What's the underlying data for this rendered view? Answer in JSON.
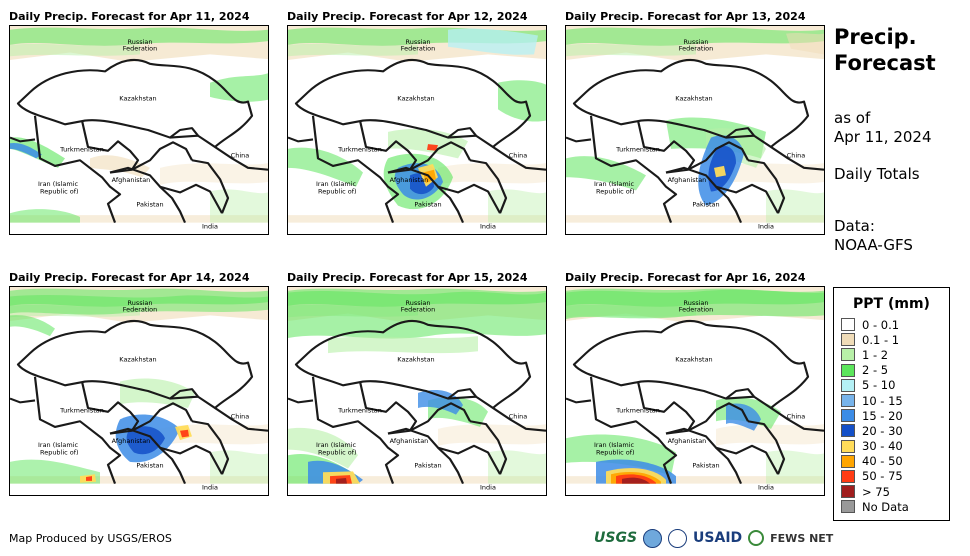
{
  "panels": [
    {
      "title": "Daily Precip. Forecast for Apr 11, 2024",
      "rain": "d1"
    },
    {
      "title": "Daily Precip. Forecast for Apr 12, 2024",
      "rain": "d2"
    },
    {
      "title": "Daily Precip. Forecast for Apr 13, 2024",
      "rain": "d3"
    },
    {
      "title": "Daily Precip. Forecast for Apr 14, 2024",
      "rain": "d4"
    },
    {
      "title": "Daily Precip. Forecast for Apr 15, 2024",
      "rain": "d5"
    },
    {
      "title": "Daily Precip. Forecast for Apr 16, 2024",
      "rain": "d6"
    }
  ],
  "map_labels": {
    "russia_line1": "Russian",
    "russia_line2": "Federation",
    "kazakhstan": "Kazakhstan",
    "turkmenistan": "Turkmenistan",
    "china": "China",
    "iran_line1": "Iran  (Islamic",
    "iran_line2": "Republic of)",
    "afghanistan": "Afghanistan",
    "pakistan": "Pakistan",
    "india": "India"
  },
  "side": {
    "title_line1": "Precip.",
    "title_line2": "Forecast",
    "asof_line1": "as of",
    "asof_line2": "Apr 11, 2024",
    "totals": "Daily Totals",
    "data_line1": "Data:",
    "data_line2": "NOAA-GFS"
  },
  "legend": {
    "title": "PPT (mm)",
    "items": [
      {
        "label": "0 - 0.1",
        "color": "#ffffff"
      },
      {
        "label": "0.1 - 1",
        "color": "#f0dcb8"
      },
      {
        "label": "1 - 2",
        "color": "#b8f0a8"
      },
      {
        "label": "2 - 5",
        "color": "#5ce65c"
      },
      {
        "label": "5 - 10",
        "color": "#b4f0f5"
      },
      {
        "label": "10 - 15",
        "color": "#78b4eb"
      },
      {
        "label": "15 - 20",
        "color": "#3c8ce6"
      },
      {
        "label": "20 - 30",
        "color": "#1450c8"
      },
      {
        "label": "30 - 40",
        "color": "#ffdc5a"
      },
      {
        "label": "40 - 50",
        "color": "#ffa500"
      },
      {
        "label": "50 - 75",
        "color": "#ff3c14"
      },
      {
        "label": "> 75",
        "color": "#a01e1e"
      },
      {
        "label": "No Data",
        "color": "#999999"
      }
    ]
  },
  "footer": {
    "credit": "Map Produced by USGS/EROS",
    "logo_usgs": "USGS",
    "logo_usaid": "USAID",
    "logo_fews": "FEWS NET"
  }
}
